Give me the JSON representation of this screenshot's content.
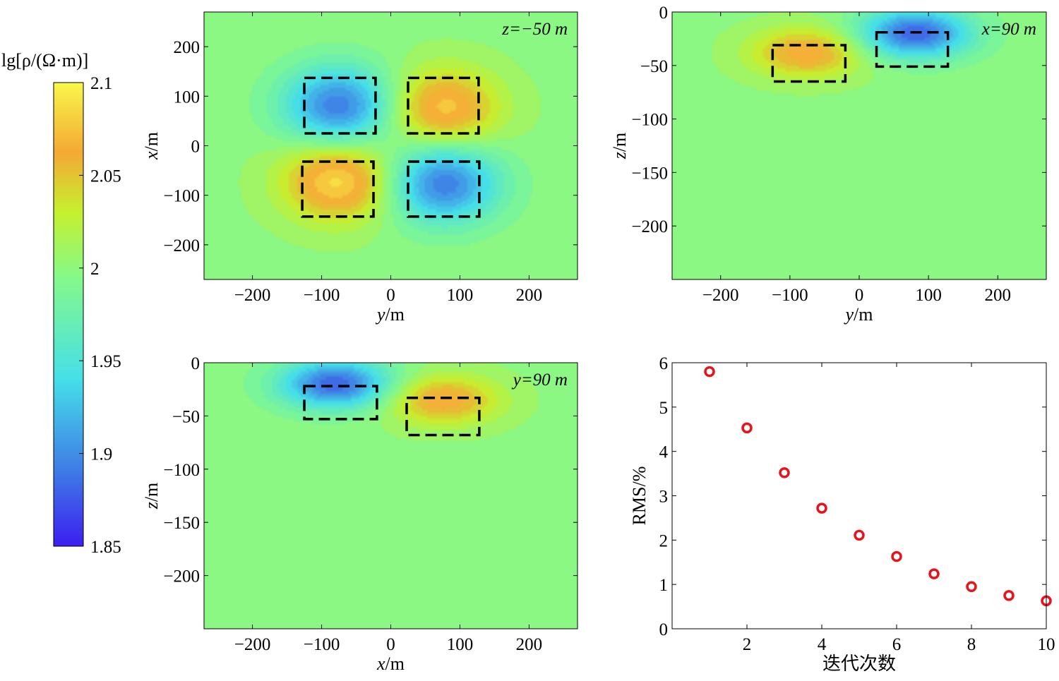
{
  "chart_data": [
    {
      "type": "heatmap",
      "panel": "top-left",
      "annotation": "z=−50 m",
      "xlabel": "y/m",
      "ylabel": "x/m",
      "xlim": [
        -270,
        270
      ],
      "ylim": [
        -270,
        270
      ],
      "xticks": [
        -200,
        -100,
        0,
        100,
        200
      ],
      "yticks": [
        -200,
        -100,
        0,
        100,
        200
      ],
      "xtick_labels": [
        "−200",
        "−100",
        "0",
        "100",
        "200"
      ],
      "ytick_labels": [
        "−200",
        "−100",
        "0",
        "100",
        "200"
      ],
      "background_value": 2.0,
      "anomalies": [
        {
          "center": [
            -75,
            80
          ],
          "amplitude": -0.11
        },
        {
          "center": [
            75,
            75
          ],
          "amplitude": 0.08
        },
        {
          "center": [
            -75,
            -70
          ],
          "amplitude": 0.09
        },
        {
          "center": [
            75,
            -75
          ],
          "amplitude": -0.11
        }
      ],
      "boxes": [
        {
          "x": [
            -125,
            -22
          ],
          "y": [
            25,
            137
          ]
        },
        {
          "x": [
            25,
            127
          ],
          "y": [
            25,
            137
          ]
        },
        {
          "x": [
            -128,
            -25
          ],
          "y": [
            -143,
            -32
          ]
        },
        {
          "x": [
            25,
            128
          ],
          "y": [
            -143,
            -32
          ]
        }
      ]
    },
    {
      "type": "heatmap",
      "panel": "top-right",
      "annotation": "x=90 m",
      "xlabel": "y/m",
      "ylabel": "z/m",
      "xlim": [
        -270,
        270
      ],
      "ylim": [
        -250,
        0
      ],
      "xticks": [
        -200,
        -100,
        0,
        100,
        200
      ],
      "yticks": [
        0,
        -50,
        -100,
        -150,
        -200
      ],
      "xtick_labels": [
        "−200",
        "−100",
        "0",
        "100",
        "200"
      ],
      "ytick_labels": [
        "0",
        "−50",
        "−100",
        "−150",
        "−200"
      ],
      "background_value": 2.0,
      "anomalies": [
        {
          "center": [
            -75,
            -38
          ],
          "amplitude": 0.07
        },
        {
          "center": [
            80,
            -20
          ],
          "amplitude": -0.12
        }
      ],
      "boxes": [
        {
          "x": [
            -125,
            -20
          ],
          "y": [
            -65,
            -31
          ]
        },
        {
          "x": [
            25,
            128
          ],
          "y": [
            -51,
            -19
          ]
        }
      ]
    },
    {
      "type": "heatmap",
      "panel": "bottom-left",
      "annotation": "y=90 m",
      "xlabel": "x/m",
      "ylabel": "z/m",
      "xlim": [
        -270,
        270
      ],
      "ylim": [
        -250,
        0
      ],
      "xticks": [
        -200,
        -100,
        0,
        100,
        200
      ],
      "yticks": [
        0,
        -50,
        -100,
        -150,
        -200
      ],
      "xtick_labels": [
        "−200",
        "−100",
        "0",
        "100",
        "200"
      ],
      "ytick_labels": [
        "0",
        "−50",
        "−100",
        "−150",
        "−200"
      ],
      "background_value": 2.0,
      "anomalies": [
        {
          "center": [
            -80,
            -20
          ],
          "amplitude": -0.12
        },
        {
          "center": [
            75,
            -35
          ],
          "amplitude": 0.07
        }
      ],
      "boxes": [
        {
          "x": [
            -125,
            -20
          ],
          "y": [
            -53,
            -22
          ]
        },
        {
          "x": [
            23,
            128
          ],
          "y": [
            -68,
            -33
          ]
        }
      ]
    },
    {
      "type": "scatter",
      "panel": "bottom-right",
      "xlabel": "迭代次数",
      "ylabel": "RMS/%",
      "xlim": [
        0,
        10
      ],
      "ylim": [
        0,
        6
      ],
      "xticks": [
        2,
        4,
        6,
        8,
        10
      ],
      "yticks": [
        0,
        1,
        2,
        3,
        4,
        5,
        6
      ],
      "xtick_labels": [
        "2",
        "4",
        "6",
        "8",
        "10"
      ],
      "ytick_labels": [
        "0",
        "1",
        "2",
        "3",
        "4",
        "5",
        "6"
      ],
      "x": [
        1,
        2,
        3,
        4,
        5,
        6,
        7,
        8,
        9,
        10
      ],
      "y": [
        5.8,
        4.53,
        3.52,
        2.72,
        2.11,
        1.63,
        1.24,
        0.95,
        0.75,
        0.63
      ],
      "marker_color": "#e8121b"
    }
  ],
  "colorbar": {
    "label": "lg[ρ/(Ω·m)]",
    "min": 1.85,
    "max": 2.1,
    "ticks": [
      1.85,
      1.9,
      1.95,
      2.0,
      2.05,
      2.1
    ],
    "tick_labels": [
      "1.85",
      "1.9",
      "1.95",
      "2",
      "2.05",
      "2.1"
    ],
    "colors": [
      "#3c1ff0",
      "#3f7fe6",
      "#45dfe9",
      "#85f98a",
      "#c5f02f",
      "#f5a935",
      "#f8f84a"
    ]
  }
}
